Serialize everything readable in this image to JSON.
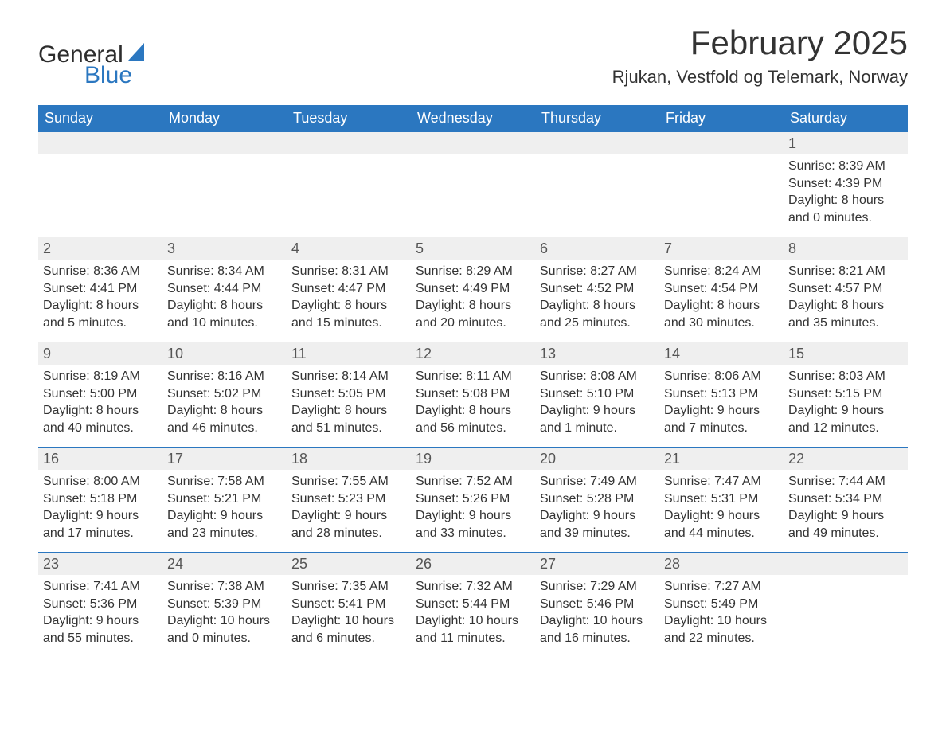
{
  "brand": {
    "word1": "General",
    "word2": "Blue",
    "sail_color": "#2b77c0"
  },
  "title": "February 2025",
  "subtitle": "Rjukan, Vestfold og Telemark, Norway",
  "colors": {
    "header_bg": "#2b77c0",
    "header_text": "#ffffff",
    "row_rule": "#2b77c0",
    "daynum_bg": "#efefef",
    "body_text": "#333333",
    "page_bg": "#ffffff"
  },
  "day_headers": [
    "Sunday",
    "Monday",
    "Tuesday",
    "Wednesday",
    "Thursday",
    "Friday",
    "Saturday"
  ],
  "weeks": [
    [
      null,
      null,
      null,
      null,
      null,
      null,
      {
        "n": "1",
        "sunrise": "Sunrise: 8:39 AM",
        "sunset": "Sunset: 4:39 PM",
        "daylight": "Daylight: 8 hours and 0 minutes."
      }
    ],
    [
      {
        "n": "2",
        "sunrise": "Sunrise: 8:36 AM",
        "sunset": "Sunset: 4:41 PM",
        "daylight": "Daylight: 8 hours and 5 minutes."
      },
      {
        "n": "3",
        "sunrise": "Sunrise: 8:34 AM",
        "sunset": "Sunset: 4:44 PM",
        "daylight": "Daylight: 8 hours and 10 minutes."
      },
      {
        "n": "4",
        "sunrise": "Sunrise: 8:31 AM",
        "sunset": "Sunset: 4:47 PM",
        "daylight": "Daylight: 8 hours and 15 minutes."
      },
      {
        "n": "5",
        "sunrise": "Sunrise: 8:29 AM",
        "sunset": "Sunset: 4:49 PM",
        "daylight": "Daylight: 8 hours and 20 minutes."
      },
      {
        "n": "6",
        "sunrise": "Sunrise: 8:27 AM",
        "sunset": "Sunset: 4:52 PM",
        "daylight": "Daylight: 8 hours and 25 minutes."
      },
      {
        "n": "7",
        "sunrise": "Sunrise: 8:24 AM",
        "sunset": "Sunset: 4:54 PM",
        "daylight": "Daylight: 8 hours and 30 minutes."
      },
      {
        "n": "8",
        "sunrise": "Sunrise: 8:21 AM",
        "sunset": "Sunset: 4:57 PM",
        "daylight": "Daylight: 8 hours and 35 minutes."
      }
    ],
    [
      {
        "n": "9",
        "sunrise": "Sunrise: 8:19 AM",
        "sunset": "Sunset: 5:00 PM",
        "daylight": "Daylight: 8 hours and 40 minutes."
      },
      {
        "n": "10",
        "sunrise": "Sunrise: 8:16 AM",
        "sunset": "Sunset: 5:02 PM",
        "daylight": "Daylight: 8 hours and 46 minutes."
      },
      {
        "n": "11",
        "sunrise": "Sunrise: 8:14 AM",
        "sunset": "Sunset: 5:05 PM",
        "daylight": "Daylight: 8 hours and 51 minutes."
      },
      {
        "n": "12",
        "sunrise": "Sunrise: 8:11 AM",
        "sunset": "Sunset: 5:08 PM",
        "daylight": "Daylight: 8 hours and 56 minutes."
      },
      {
        "n": "13",
        "sunrise": "Sunrise: 8:08 AM",
        "sunset": "Sunset: 5:10 PM",
        "daylight": "Daylight: 9 hours and 1 minute."
      },
      {
        "n": "14",
        "sunrise": "Sunrise: 8:06 AM",
        "sunset": "Sunset: 5:13 PM",
        "daylight": "Daylight: 9 hours and 7 minutes."
      },
      {
        "n": "15",
        "sunrise": "Sunrise: 8:03 AM",
        "sunset": "Sunset: 5:15 PM",
        "daylight": "Daylight: 9 hours and 12 minutes."
      }
    ],
    [
      {
        "n": "16",
        "sunrise": "Sunrise: 8:00 AM",
        "sunset": "Sunset: 5:18 PM",
        "daylight": "Daylight: 9 hours and 17 minutes."
      },
      {
        "n": "17",
        "sunrise": "Sunrise: 7:58 AM",
        "sunset": "Sunset: 5:21 PM",
        "daylight": "Daylight: 9 hours and 23 minutes."
      },
      {
        "n": "18",
        "sunrise": "Sunrise: 7:55 AM",
        "sunset": "Sunset: 5:23 PM",
        "daylight": "Daylight: 9 hours and 28 minutes."
      },
      {
        "n": "19",
        "sunrise": "Sunrise: 7:52 AM",
        "sunset": "Sunset: 5:26 PM",
        "daylight": "Daylight: 9 hours and 33 minutes."
      },
      {
        "n": "20",
        "sunrise": "Sunrise: 7:49 AM",
        "sunset": "Sunset: 5:28 PM",
        "daylight": "Daylight: 9 hours and 39 minutes."
      },
      {
        "n": "21",
        "sunrise": "Sunrise: 7:47 AM",
        "sunset": "Sunset: 5:31 PM",
        "daylight": "Daylight: 9 hours and 44 minutes."
      },
      {
        "n": "22",
        "sunrise": "Sunrise: 7:44 AM",
        "sunset": "Sunset: 5:34 PM",
        "daylight": "Daylight: 9 hours and 49 minutes."
      }
    ],
    [
      {
        "n": "23",
        "sunrise": "Sunrise: 7:41 AM",
        "sunset": "Sunset: 5:36 PM",
        "daylight": "Daylight: 9 hours and 55 minutes."
      },
      {
        "n": "24",
        "sunrise": "Sunrise: 7:38 AM",
        "sunset": "Sunset: 5:39 PM",
        "daylight": "Daylight: 10 hours and 0 minutes."
      },
      {
        "n": "25",
        "sunrise": "Sunrise: 7:35 AM",
        "sunset": "Sunset: 5:41 PM",
        "daylight": "Daylight: 10 hours and 6 minutes."
      },
      {
        "n": "26",
        "sunrise": "Sunrise: 7:32 AM",
        "sunset": "Sunset: 5:44 PM",
        "daylight": "Daylight: 10 hours and 11 minutes."
      },
      {
        "n": "27",
        "sunrise": "Sunrise: 7:29 AM",
        "sunset": "Sunset: 5:46 PM",
        "daylight": "Daylight: 10 hours and 16 minutes."
      },
      {
        "n": "28",
        "sunrise": "Sunrise: 7:27 AM",
        "sunset": "Sunset: 5:49 PM",
        "daylight": "Daylight: 10 hours and 22 minutes."
      },
      null
    ]
  ]
}
